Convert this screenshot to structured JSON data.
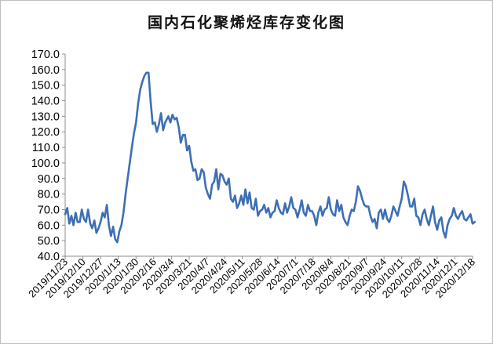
{
  "chart_data": {
    "type": "line",
    "title": "国内石化聚烯烃库存变化图",
    "xlabel": "",
    "ylabel": "",
    "ylim": [
      40.0,
      170.0
    ],
    "yticks": [
      "170.0",
      "160.0",
      "150.0",
      "140.0",
      "130.0",
      "120.0",
      "110.0",
      "100.0",
      "90.0",
      "80.0",
      "70.0",
      "60.0",
      "50.0",
      "40.0"
    ],
    "xticks": [
      "2019/11/23",
      "2019/12/10",
      "2019/12/27",
      "2020/1/13",
      "2020/1/30",
      "2020/2/16",
      "2020/3/4",
      "2020/3/21",
      "2020/4/7",
      "2020/4/24",
      "2020/5/11",
      "2020/5/28",
      "2020/6/14",
      "2020/7/1",
      "2020/7/18",
      "2020/8/4",
      "2020/8/21",
      "2020/9/7",
      "2020/9/24",
      "2020/10/11",
      "2020/10/28",
      "2020/11/14",
      "2020/12/1",
      "2020/12/18"
    ],
    "grid": false,
    "line_color": "#3d6fb4",
    "series": [
      {
        "name": "",
        "points": [
          [
            "2019/11/23",
            67
          ],
          [
            "2019/11/25",
            71
          ],
          [
            "2019/11/27",
            61
          ],
          [
            "2019/11/29",
            66
          ],
          [
            "2019/12/1",
            60
          ],
          [
            "2019/12/3",
            68
          ],
          [
            "2019/12/5",
            62
          ],
          [
            "2019/12/7",
            62
          ],
          [
            "2019/12/9",
            70
          ],
          [
            "2019/12/11",
            64
          ],
          [
            "2019/12/13",
            62
          ],
          [
            "2019/12/15",
            70
          ],
          [
            "2019/12/17",
            61
          ],
          [
            "2019/12/19",
            58
          ],
          [
            "2019/12/21",
            63
          ],
          [
            "2019/12/23",
            55
          ],
          [
            "2019/12/25",
            58
          ],
          [
            "2019/12/27",
            62
          ],
          [
            "2019/12/29",
            68
          ],
          [
            "2019/12/31",
            65
          ],
          [
            "2020/1/2",
            73
          ],
          [
            "2020/1/4",
            60
          ],
          [
            "2020/1/6",
            53
          ],
          [
            "2020/1/8",
            59
          ],
          [
            "2020/1/10",
            51
          ],
          [
            "2020/1/12",
            49
          ],
          [
            "2020/1/14",
            56
          ],
          [
            "2020/1/16",
            60
          ],
          [
            "2020/1/18",
            68
          ],
          [
            "2020/1/20",
            80
          ],
          [
            "2020/1/22",
            90
          ],
          [
            "2020/1/24",
            100
          ],
          [
            "2020/1/26",
            110
          ],
          [
            "2020/1/28",
            119
          ],
          [
            "2020/1/30",
            126
          ],
          [
            "2020/2/1",
            138
          ],
          [
            "2020/2/3",
            147
          ],
          [
            "2020/2/5",
            152
          ],
          [
            "2020/2/7",
            156
          ],
          [
            "2020/2/9",
            158
          ],
          [
            "2020/2/11",
            158
          ],
          [
            "2020/2/13",
            140
          ],
          [
            "2020/2/15",
            125
          ],
          [
            "2020/2/17",
            126
          ],
          [
            "2020/2/19",
            120
          ],
          [
            "2020/2/21",
            125
          ],
          [
            "2020/2/23",
            132
          ],
          [
            "2020/2/25",
            121
          ],
          [
            "2020/2/27",
            126
          ],
          [
            "2020/3/1",
            130
          ],
          [
            "2020/3/3",
            126
          ],
          [
            "2020/3/5",
            131
          ],
          [
            "2020/3/7",
            128
          ],
          [
            "2020/3/9",
            129
          ],
          [
            "2020/3/11",
            123
          ],
          [
            "2020/3/13",
            113
          ],
          [
            "2020/3/15",
            118
          ],
          [
            "2020/3/17",
            118
          ],
          [
            "2020/3/19",
            108
          ],
          [
            "2020/3/21",
            111
          ],
          [
            "2020/3/23",
            101
          ],
          [
            "2020/3/25",
            95
          ],
          [
            "2020/3/27",
            96
          ],
          [
            "2020/3/29",
            89
          ],
          [
            "2020/3/31",
            90
          ],
          [
            "2020/4/2",
            96
          ],
          [
            "2020/4/4",
            94
          ],
          [
            "2020/4/6",
            84
          ],
          [
            "2020/4/8",
            80
          ],
          [
            "2020/4/10",
            77
          ],
          [
            "2020/4/12",
            86
          ],
          [
            "2020/4/14",
            88
          ],
          [
            "2020/4/16",
            96
          ],
          [
            "2020/4/18",
            83
          ],
          [
            "2020/4/20",
            93
          ],
          [
            "2020/4/22",
            92
          ],
          [
            "2020/4/24",
            88
          ],
          [
            "2020/4/26",
            86
          ],
          [
            "2020/4/28",
            90
          ],
          [
            "2020/4/30",
            77
          ],
          [
            "2020/5/2",
            75
          ],
          [
            "2020/5/4",
            79
          ],
          [
            "2020/5/6",
            71
          ],
          [
            "2020/5/8",
            74
          ],
          [
            "2020/5/10",
            79
          ],
          [
            "2020/5/12",
            73
          ],
          [
            "2020/5/14",
            83
          ],
          [
            "2020/5/16",
            74
          ],
          [
            "2020/5/18",
            81
          ],
          [
            "2020/5/20",
            71
          ],
          [
            "2020/5/22",
            70
          ],
          [
            "2020/5/24",
            77
          ],
          [
            "2020/5/26",
            66
          ],
          [
            "2020/5/28",
            69
          ],
          [
            "2020/5/30",
            70
          ],
          [
            "2020/6/1",
            73
          ],
          [
            "2020/6/3",
            68
          ],
          [
            "2020/6/5",
            71
          ],
          [
            "2020/6/7",
            65
          ],
          [
            "2020/6/9",
            68
          ],
          [
            "2020/6/11",
            69
          ],
          [
            "2020/6/13",
            76
          ],
          [
            "2020/6/15",
            71
          ],
          [
            "2020/6/17",
            68
          ],
          [
            "2020/6/19",
            67
          ],
          [
            "2020/6/21",
            74
          ],
          [
            "2020/6/23",
            68
          ],
          [
            "2020/6/25",
            72
          ],
          [
            "2020/6/27",
            78
          ],
          [
            "2020/6/29",
            71
          ],
          [
            "2020/7/1",
            70
          ],
          [
            "2020/7/3",
            65
          ],
          [
            "2020/7/5",
            70
          ],
          [
            "2020/7/7",
            76
          ],
          [
            "2020/7/9",
            68
          ],
          [
            "2020/7/11",
            66
          ],
          [
            "2020/7/13",
            73
          ],
          [
            "2020/7/15",
            69
          ],
          [
            "2020/7/17",
            69
          ],
          [
            "2020/7/19",
            66
          ],
          [
            "2020/7/21",
            60
          ],
          [
            "2020/7/23",
            68
          ],
          [
            "2020/7/25",
            72
          ],
          [
            "2020/7/27",
            66
          ],
          [
            "2020/7/29",
            70
          ],
          [
            "2020/7/31",
            71
          ],
          [
            "2020/8/2",
            78
          ],
          [
            "2020/8/4",
            70
          ],
          [
            "2020/8/6",
            67
          ],
          [
            "2020/8/8",
            66
          ],
          [
            "2020/8/10",
            76
          ],
          [
            "2020/8/12",
            69
          ],
          [
            "2020/8/14",
            73
          ],
          [
            "2020/8/16",
            65
          ],
          [
            "2020/8/18",
            62
          ],
          [
            "2020/8/20",
            60
          ],
          [
            "2020/8/22",
            66
          ],
          [
            "2020/8/24",
            70
          ],
          [
            "2020/8/26",
            69
          ],
          [
            "2020/8/28",
            75
          ],
          [
            "2020/8/30",
            85
          ],
          [
            "2020/9/1",
            82
          ],
          [
            "2020/9/3",
            77
          ],
          [
            "2020/9/5",
            73
          ],
          [
            "2020/9/7",
            72
          ],
          [
            "2020/9/9",
            72
          ],
          [
            "2020/9/11",
            66
          ],
          [
            "2020/9/13",
            62
          ],
          [
            "2020/9/15",
            64
          ],
          [
            "2020/9/17",
            58
          ],
          [
            "2020/9/19",
            68
          ],
          [
            "2020/9/21",
            70
          ],
          [
            "2020/9/23",
            64
          ],
          [
            "2020/9/25",
            70
          ],
          [
            "2020/9/27",
            64
          ],
          [
            "2020/9/29",
            62
          ],
          [
            "2020/10/1",
            66
          ],
          [
            "2020/10/3",
            72
          ],
          [
            "2020/10/5",
            69
          ],
          [
            "2020/10/7",
            66
          ],
          [
            "2020/10/9",
            72
          ],
          [
            "2020/10/11",
            77
          ],
          [
            "2020/10/13",
            88
          ],
          [
            "2020/10/15",
            85
          ],
          [
            "2020/10/17",
            79
          ],
          [
            "2020/10/19",
            72
          ],
          [
            "2020/10/21",
            72
          ],
          [
            "2020/10/23",
            77
          ],
          [
            "2020/10/25",
            66
          ],
          [
            "2020/10/27",
            65
          ],
          [
            "2020/10/29",
            60
          ],
          [
            "2020/10/31",
            67
          ],
          [
            "2020/11/2",
            70
          ],
          [
            "2020/11/4",
            64
          ],
          [
            "2020/11/6",
            60
          ],
          [
            "2020/11/8",
            66
          ],
          [
            "2020/11/10",
            72
          ],
          [
            "2020/11/12",
            62
          ],
          [
            "2020/11/14",
            57
          ],
          [
            "2020/11/16",
            63
          ],
          [
            "2020/11/18",
            65
          ],
          [
            "2020/11/20",
            56
          ],
          [
            "2020/11/22",
            52
          ],
          [
            "2020/11/24",
            60
          ],
          [
            "2020/11/26",
            64
          ],
          [
            "2020/11/28",
            66
          ],
          [
            "2020/11/30",
            71
          ],
          [
            "2020/12/2",
            66
          ],
          [
            "2020/12/4",
            64
          ],
          [
            "2020/12/6",
            67
          ],
          [
            "2020/12/8",
            69
          ],
          [
            "2020/12/10",
            64
          ],
          [
            "2020/12/12",
            63
          ],
          [
            "2020/12/14",
            65
          ],
          [
            "2020/12/16",
            67
          ],
          [
            "2020/12/18",
            61
          ],
          [
            "2020/12/20",
            62
          ]
        ]
      }
    ]
  }
}
